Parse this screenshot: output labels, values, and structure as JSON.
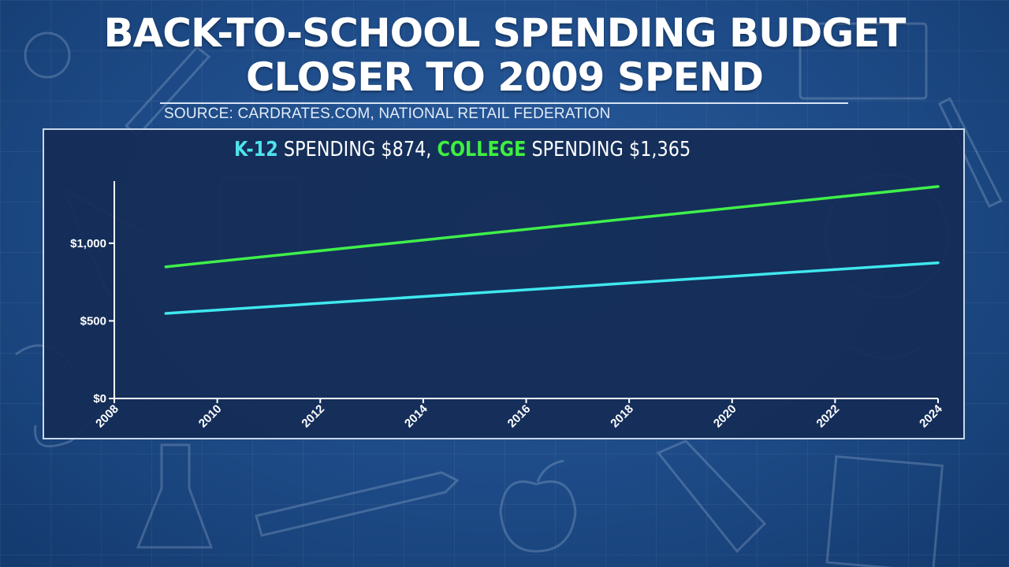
{
  "title_line1": "BACK-TO-SCHOOL SPENDING BUDGET",
  "title_line2": "CLOSER TO 2009 SPEND",
  "source": "SOURCE: CARDRATES.COM, NATIONAL RETAIL FEDERATION",
  "headline": {
    "k12_label": "K-12",
    "k12_text": " SPENDING $874, ",
    "college_label": "COLLEGE",
    "college_text": " SPENDING $1,365"
  },
  "colors": {
    "k12": "#3fe8ee",
    "college": "#3ff04a",
    "axis": "#ffffff"
  },
  "chart_data": {
    "type": "line",
    "x_range": [
      2008,
      2024
    ],
    "ylim": [
      0,
      1400
    ],
    "x_ticks": [
      2008,
      2010,
      2012,
      2014,
      2016,
      2018,
      2020,
      2022,
      2024
    ],
    "x_tick_labels": [
      "2008",
      "2010",
      "2012",
      "2014",
      "2016",
      "2018",
      "2020",
      "2022",
      "2024"
    ],
    "y_ticks": [
      0,
      500,
      1000
    ],
    "y_tick_labels": [
      "$0",
      "$500",
      "$1,000"
    ],
    "grid": false,
    "series": [
      {
        "name": "K-12",
        "color": "#3fe8ee",
        "x": [
          2009,
          2024
        ],
        "y": [
          548,
          874
        ]
      },
      {
        "name": "COLLEGE",
        "color": "#3ff04a",
        "x": [
          2009,
          2024
        ],
        "y": [
          848,
          1365
        ]
      }
    ]
  }
}
